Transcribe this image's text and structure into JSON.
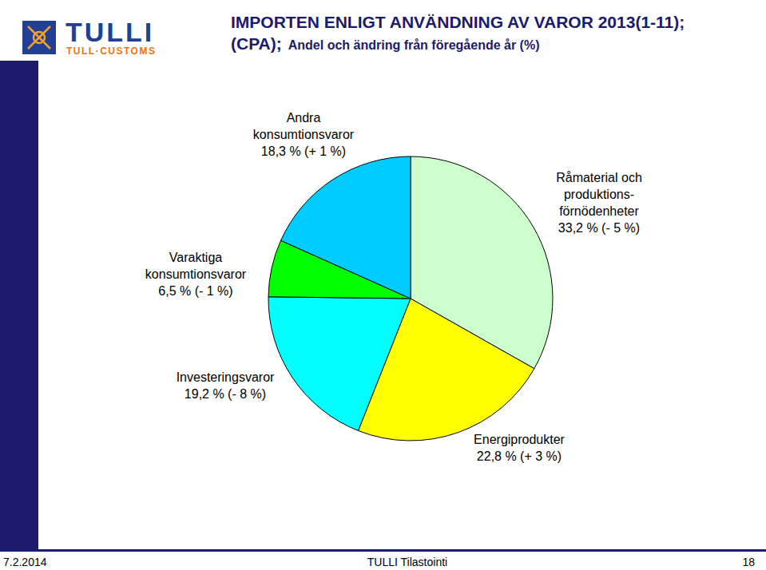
{
  "header": {
    "logo_text": "TULLI",
    "logo_subtext": "TULL·CUSTOMS"
  },
  "chart_data": {
    "type": "pie",
    "title": "IMPORTEN ENLIGT ANVÄNDNING AV VAROR 2013(1-11);",
    "title_line2": "(CPA);",
    "subtitle": "Andel och ändring från föregående år (%)",
    "categories": [
      "Råmaterial och\nproduktions-\nförnödenheter",
      "Energiprodukter",
      "Investeringsvaror",
      "Varaktiga\nkonsumtionsvaror",
      "Andra\nkonsumtionsvaror"
    ],
    "values": [
      33.2,
      22.8,
      19.2,
      6.5,
      18.3
    ],
    "value_labels": [
      "33,2 % (- 5 %)",
      "22,8 % (+ 3 %)",
      "19,2 % (- 8 %)",
      "6,5 % (- 1 %)",
      "18,3 % (+ 1 %)"
    ],
    "colors": [
      "#ccffcc",
      "#ffff00",
      "#00ffff",
      "#00ff00",
      "#00ccff"
    ],
    "data_labels": true
  },
  "footer": {
    "date": "7.2.2014",
    "source": "TULLI Tilastointi",
    "page": 18
  }
}
